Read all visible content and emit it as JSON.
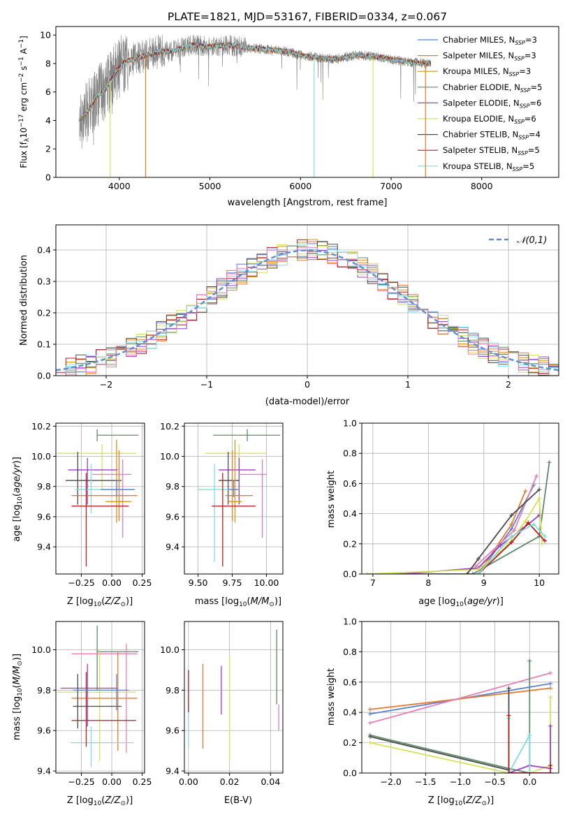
{
  "title": "PLATE=1821, MJD=53167, FIBERID=0334, z=0.067",
  "colors": {
    "cMilesChab": "#5b7fd1",
    "cMilesSalp": "#e87a2b",
    "cMilesKrou": "#d4960e",
    "cElodChab": "#5f8a6a",
    "cElodSalp": "#9a3fbf",
    "cElodKrou": "#d5e35a",
    "cStelChab": "#4a4a4a",
    "cStelSalp": "#b51c1c",
    "cStelKrou": "#7fdde0",
    "pink": "#e67fb6",
    "grey": "#808080"
  },
  "legend_entries": [
    "Chabrier MILES, N_SSP=3",
    "Salpeter MILES, N_SSP=3",
    "Kroupa MILES, N_SSP=3",
    "Chabrier ELODIE, N_SSP=5",
    "Salpeter ELODIE, N_SSP=6",
    "Kroupa ELODIE, N_SSP=6",
    "Chabrier STELIB, N_SSP=4",
    "Salpeter STELIB, N_SSP=5",
    "Kroupa STELIB, N_SSP=5"
  ],
  "legend_colors": [
    "#5b7fd1",
    "#e87a2b",
    "#d4960e",
    "#5f8a6a",
    "#9a3fbf",
    "#d5e35a",
    "#4a4a4a",
    "#b51c1c",
    "#7fdde0"
  ],
  "labels": {
    "spec_x": "wavelength [Angstrom, rest frame]",
    "spec_y": "Flux [f_λ 10^-17 erg cm^-2 s^-1 A^-1]",
    "hist_x": "(data-model)/error",
    "hist_y": "Normed distribution",
    "hist_legend": "𝒩(0,1)",
    "age_y": "age  [log10(age/yr)]",
    "z_x": "Z [log10(Z/Z⊙)]",
    "mass_x": "mass [log10(M/M⊙)]",
    "mass_y": "mass [log10(M/M⊙)]",
    "mw_y": "mass weight",
    "age_x": "age  [log10(age/yr)]",
    "ebv_x": "E(B-V)"
  },
  "chart_data": [
    {
      "type": "line",
      "name": "spectrum",
      "xlim": [
        3300,
        8850
      ],
      "ylim": [
        0,
        10.6
      ],
      "xticks": [
        4000,
        5000,
        6000,
        7000,
        8000
      ],
      "yticks": [
        0,
        2,
        4,
        6,
        8,
        10
      ],
      "data_range": [
        3560,
        7440
      ],
      "model_points": [
        [
          3560,
          4.0
        ],
        [
          3650,
          4.6
        ],
        [
          3750,
          5.7
        ],
        [
          3850,
          6.2
        ],
        [
          3950,
          7.3
        ],
        [
          4050,
          8.1
        ],
        [
          4200,
          8.4
        ],
        [
          4400,
          8.8
        ],
        [
          4600,
          8.9
        ],
        [
          4800,
          9.3
        ],
        [
          5000,
          9.2
        ],
        [
          5200,
          9.3
        ],
        [
          5400,
          9.1
        ],
        [
          5600,
          9.0
        ],
        [
          5800,
          8.9
        ],
        [
          6000,
          8.6
        ],
        [
          6200,
          8.4
        ],
        [
          6400,
          8.3
        ],
        [
          6600,
          8.6
        ],
        [
          6800,
          8.5
        ],
        [
          7000,
          8.3
        ],
        [
          7200,
          8.1
        ],
        [
          7400,
          8.0
        ]
      ],
      "spikes": [
        [
          3900,
          0
        ],
        [
          4290,
          0
        ],
        [
          6150,
          0
        ],
        [
          6800,
          0
        ],
        [
          7380,
          0
        ]
      ]
    },
    {
      "type": "bar",
      "name": "residual histogram",
      "xlim": [
        -2.5,
        2.5
      ],
      "ylim": [
        0,
        0.48
      ],
      "xticks": [
        -2,
        -1,
        0,
        1,
        2
      ],
      "yticks": [
        0.0,
        0.1,
        0.2,
        0.3,
        0.4
      ],
      "bin_width": 0.1,
      "gaussian": {
        "mu": 0,
        "sigma": 1
      }
    },
    {
      "type": "scatter",
      "name": "age vs Z",
      "xlim": [
        -0.46,
        0.27
      ],
      "ylim": [
        9.22,
        10.22
      ],
      "xticks": [
        -0.25,
        0.0,
        0.25
      ],
      "yticks": [
        9.4,
        9.6,
        9.8,
        10.0,
        10.2
      ],
      "points": [
        {
          "x": -0.12,
          "xe": [
            -0.12,
            0.22
          ],
          "y": 10.14,
          "ye": [
            10.1,
            10.18
          ],
          "c": "#5f8a6a"
        },
        {
          "x": -0.08,
          "xe": [
            -0.45,
            0.2
          ],
          "y": 10.02,
          "ye": [
            9.78,
            10.08
          ],
          "c": "#d5e35a"
        },
        {
          "x": -0.2,
          "xe": [
            -0.36,
            0.05
          ],
          "y": 9.91,
          "ye": [
            9.68,
            9.99
          ],
          "c": "#9a3fbf"
        },
        {
          "x": 0.09,
          "xe": [
            -0.16,
            0.16
          ],
          "y": 9.88,
          "ye": [
            9.46,
            9.98
          ],
          "c": "#e67fb6"
        },
        {
          "x": -0.28,
          "xe": [
            -0.38,
            0.08
          ],
          "y": 9.84,
          "ye": [
            9.68,
            10.03
          ],
          "c": "#4a4a4a"
        },
        {
          "x": -0.17,
          "xe": [
            -0.3,
            0.18
          ],
          "y": 9.78,
          "ye": [
            9.62,
            9.95
          ],
          "c": "#7fdde0"
        },
        {
          "x": 0.06,
          "xe": [
            -0.33,
            0.21
          ],
          "y": 9.74,
          "ye": [
            9.57,
            10.04
          ],
          "c": "#e87a2b"
        },
        {
          "x": 0.04,
          "xe": [
            -0.05,
            0.16
          ],
          "y": 9.7,
          "ye": [
            9.56,
            10.11
          ],
          "c": "#d4960e"
        },
        {
          "x": -0.21,
          "xe": [
            -0.33,
            0.14
          ],
          "y": 9.67,
          "ye": [
            9.27,
            9.89
          ],
          "c": "#b51c1c"
        },
        {
          "x": 0.04,
          "xe": [
            -0.09,
            0.19
          ],
          "y": 9.78,
          "ye": [
            9.73,
            9.84
          ],
          "c": "#5b7fd1"
        }
      ]
    },
    {
      "type": "scatter",
      "name": "age vs mass",
      "xlim": [
        9.4,
        10.12
      ],
      "ylim": [
        9.22,
        10.22
      ],
      "xticks": [
        9.5,
        9.75,
        10.0
      ],
      "yticks": [
        9.4,
        9.6,
        9.8,
        10.0,
        10.2
      ],
      "points": [
        {
          "x": 9.86,
          "xe": [
            9.61,
            10.1
          ],
          "y": 10.14,
          "ye": [
            10.1,
            10.18
          ],
          "c": "#5f8a6a"
        },
        {
          "x": 9.8,
          "xe": [
            9.55,
            10.0
          ],
          "y": 10.02,
          "ye": [
            9.78,
            10.08
          ],
          "c": "#d5e35a"
        },
        {
          "x": 9.8,
          "xe": [
            9.65,
            9.92
          ],
          "y": 9.91,
          "ye": [
            9.68,
            9.99
          ],
          "c": "#9a3fbf"
        },
        {
          "x": 9.97,
          "xe": [
            9.8,
            10.0
          ],
          "y": 9.88,
          "ye": [
            9.46,
            9.98
          ],
          "c": "#e67fb6"
        },
        {
          "x": 9.72,
          "xe": [
            9.65,
            9.8
          ],
          "y": 9.84,
          "ye": [
            9.68,
            10.03
          ],
          "c": "#4a4a4a"
        },
        {
          "x": 9.62,
          "xe": [
            9.5,
            9.8
          ],
          "y": 9.78,
          "ye": [
            9.3,
            9.95
          ],
          "c": "#7fdde0"
        },
        {
          "x": 9.75,
          "xe": [
            9.7,
            9.9
          ],
          "y": 9.74,
          "ye": [
            9.57,
            10.04
          ],
          "c": "#e87a2b"
        },
        {
          "x": 9.77,
          "xe": [
            9.72,
            9.82
          ],
          "y": 9.7,
          "ye": [
            9.56,
            10.11
          ],
          "c": "#d4960e"
        },
        {
          "x": 9.68,
          "xe": [
            9.6,
            9.92
          ],
          "y": 9.67,
          "ye": [
            9.27,
            9.89
          ],
          "c": "#b51c1c"
        },
        {
          "x": 9.76,
          "xe": [
            9.72,
            9.8
          ],
          "y": 9.78,
          "ye": [
            9.73,
            9.84
          ],
          "c": "#5b7fd1"
        }
      ]
    },
    {
      "type": "line",
      "name": "mass weight vs age",
      "xlim": [
        6.8,
        10.35
      ],
      "ylim": [
        0,
        1
      ],
      "xticks": [
        7,
        8,
        9,
        10
      ],
      "yticks": [
        0.0,
        0.2,
        0.4,
        0.6,
        0.8,
        1.0
      ],
      "series": [
        {
          "c": "#5b7fd1",
          "pts": [
            [
              8.9,
              0.0
            ],
            [
              9.5,
              0.3
            ],
            [
              9.9,
              0.59
            ]
          ]
        },
        {
          "c": "#e87a2b",
          "pts": [
            [
              8.9,
              0.0
            ],
            [
              9.5,
              0.33
            ],
            [
              9.75,
              0.55
            ]
          ]
        },
        {
          "c": "#e67fb6",
          "pts": [
            [
              8.85,
              0.05
            ],
            [
              9.55,
              0.29
            ],
            [
              9.95,
              0.65
            ]
          ]
        },
        {
          "c": "#5f8a6a",
          "pts": [
            [
              6.9,
              0.0
            ],
            [
              8.8,
              0.0
            ],
            [
              10.0,
              0.25
            ],
            [
              10.18,
              0.74
            ]
          ]
        },
        {
          "c": "#9a3fbf",
          "pts": [
            [
              7.5,
              0.0
            ],
            [
              8.9,
              0.04
            ],
            [
              9.3,
              0.19
            ],
            [
              9.7,
              0.3
            ],
            [
              10.0,
              0.39
            ]
          ]
        },
        {
          "c": "#d5e35a",
          "pts": [
            [
              6.9,
              0.0
            ],
            [
              8.9,
              0.03
            ],
            [
              9.4,
              0.18
            ],
            [
              9.75,
              0.35
            ],
            [
              10.0,
              0.5
            ],
            [
              10.05,
              0.2
            ]
          ]
        },
        {
          "c": "#4a4a4a",
          "pts": [
            [
              8.7,
              0.0
            ],
            [
              8.9,
              0.1
            ],
            [
              9.5,
              0.39
            ],
            [
              10.0,
              0.56
            ]
          ]
        },
        {
          "c": "#b51c1c",
          "pts": [
            [
              8.9,
              0.0
            ],
            [
              9.5,
              0.21
            ],
            [
              9.8,
              0.34
            ],
            [
              10.1,
              0.22
            ]
          ]
        },
        {
          "c": "#7fdde0",
          "pts": [
            [
              8.9,
              0.0
            ],
            [
              9.5,
              0.25
            ],
            [
              9.9,
              0.33
            ],
            [
              10.1,
              0.25
            ]
          ]
        }
      ]
    },
    {
      "type": "scatter",
      "name": "mass vs Z",
      "xlim": [
        -0.46,
        0.27
      ],
      "ylim": [
        9.39,
        10.14
      ],
      "xticks": [
        -0.25,
        0.0,
        0.25
      ],
      "yticks": [
        9.4,
        9.6,
        9.8,
        10.0
      ],
      "points": [
        {
          "x": -0.12,
          "xe": [
            -0.12,
            0.22
          ],
          "y": 9.99,
          "ye": [
            9.8,
            10.12
          ],
          "c": "#5f8a6a"
        },
        {
          "x": 0.12,
          "xe": [
            -0.33,
            0.21
          ],
          "y": 9.98,
          "ye": [
            9.49,
            10.03
          ],
          "c": "#e67fb6"
        },
        {
          "x": -0.1,
          "xe": [
            -0.45,
            0.2
          ],
          "y": 9.79,
          "ye": [
            9.45,
            10.0
          ],
          "c": "#d5e35a"
        },
        {
          "x": -0.2,
          "xe": [
            -0.42,
            0.05
          ],
          "y": 9.81,
          "ye": [
            9.62,
            9.93
          ],
          "c": "#9a3fbf"
        },
        {
          "x": 0.05,
          "xe": [
            -0.33,
            0.21
          ],
          "y": 9.76,
          "ye": [
            9.5,
            9.99
          ],
          "c": "#e87a2b"
        },
        {
          "x": -0.28,
          "xe": [
            -0.32,
            0.08
          ],
          "y": 9.72,
          "ye": [
            9.61,
            9.88
          ],
          "c": "#4a4a4a"
        },
        {
          "x": -0.17,
          "xe": [
            -0.34,
            0.18
          ],
          "y": 9.54,
          "ye": [
            9.42,
            9.62
          ],
          "c": "#7fdde0"
        },
        {
          "x": -0.21,
          "xe": [
            -0.33,
            0.2
          ],
          "y": 9.65,
          "ye": [
            9.52,
            9.89
          ],
          "c": "#b51c1c"
        },
        {
          "x": 0.04,
          "xe": [
            -0.32,
            0.14
          ],
          "y": 9.8,
          "ye": [
            9.7,
            9.88
          ],
          "c": "#5b7fd1"
        }
      ]
    },
    {
      "type": "scatter",
      "name": "mass vs E(B-V)",
      "xlim": [
        -0.002,
        0.046
      ],
      "ylim": [
        9.39,
        10.14
      ],
      "xticks": [
        0.0,
        0.02,
        0.04
      ],
      "yticks": [
        9.4,
        9.6,
        9.8,
        10.0
      ],
      "points": [
        {
          "x": 0.0,
          "ye": [
            9.52,
            9.84
          ],
          "c": "#7fdde0"
        },
        {
          "x": 0.0,
          "ye": [
            9.69,
            9.9
          ],
          "c": "#b51c1c"
        },
        {
          "x": 0.007,
          "ye": [
            9.51,
            9.93
          ],
          "c": "#e87a2b"
        },
        {
          "x": 0.016,
          "ye": [
            9.68,
            9.92
          ],
          "c": "#9a3fbf"
        },
        {
          "x": 0.02,
          "ye": [
            9.45,
            9.97
          ],
          "c": "#d5e35a"
        },
        {
          "x": 0.043,
          "ye": [
            9.73,
            10.1
          ],
          "c": "#5f8a6a"
        },
        {
          "x": 0.044,
          "ye": [
            9.6,
            9.73
          ],
          "c": "#e67fb6"
        }
      ]
    },
    {
      "type": "line",
      "name": "mass weight vs Z",
      "xlim": [
        -2.42,
        0.42
      ],
      "ylim": [
        0,
        1
      ],
      "xticks": [
        -2.0,
        -1.5,
        -1.0,
        -0.5,
        0.0
      ],
      "yticks": [
        0.0,
        0.2,
        0.4,
        0.6,
        0.8,
        1.0
      ],
      "series": [
        {
          "c": "#5b7fd1",
          "pts": [
            [
              -2.3,
              0.39
            ],
            [
              0.3,
              0.59
            ]
          ]
        },
        {
          "c": "#e87a2b",
          "pts": [
            [
              -2.3,
              0.42
            ],
            [
              0.3,
              0.56
            ]
          ]
        },
        {
          "c": "#e67fb6",
          "pts": [
            [
              -2.3,
              0.33
            ],
            [
              0.3,
              0.66
            ]
          ]
        },
        {
          "c": "#5f8a6a",
          "pts": [
            [
              -2.3,
              0.25
            ],
            [
              -0.3,
              0.03
            ],
            [
              0.0,
              0.0
            ],
            [
              0.0,
              0.74
            ]
          ]
        },
        {
          "c": "#d5e35a",
          "pts": [
            [
              -2.3,
              0.2
            ],
            [
              -0.3,
              0.0
            ],
            [
              0.0,
              0.0
            ],
            [
              0.3,
              0.05
            ],
            [
              0.3,
              0.5
            ]
          ]
        },
        {
          "c": "#4a4a4a",
          "pts": [
            [
              -2.3,
              0.24
            ],
            [
              -0.3,
              0.02
            ],
            [
              -0.3,
              0.56
            ]
          ]
        },
        {
          "c": "#9a3fbf",
          "pts": [
            [
              -0.3,
              0.0
            ],
            [
              0.0,
              0.05
            ],
            [
              0.3,
              0.03
            ],
            [
              0.3,
              0.31
            ]
          ]
        },
        {
          "c": "#7fdde0",
          "pts": [
            [
              -0.3,
              0.36
            ],
            [
              -0.3,
              0.0
            ],
            [
              0.0,
              0.25
            ],
            [
              0.0,
              0.0
            ]
          ]
        },
        {
          "c": "#b51c1c",
          "pts": [
            [
              -0.3,
              0.38
            ],
            [
              -0.3,
              0.0
            ],
            [
              0.3,
              0.0
            ],
            [
              0.3,
              0.05
            ]
          ]
        }
      ]
    }
  ]
}
